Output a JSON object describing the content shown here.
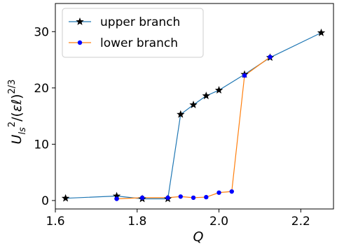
{
  "chart_data": {
    "type": "line",
    "xlabel": "Q",
    "ylabel": "U_ls^2/(εℓ)^(2/3)",
    "xlim": [
      1.6,
      2.28
    ],
    "ylim": [
      -1.5,
      35
    ],
    "xticks": [
      1.6,
      1.8,
      2.0,
      2.2
    ],
    "xtick_labels": [
      "1.6",
      "1.8",
      "2.0",
      "2.2"
    ],
    "yticks": [
      0,
      10,
      20,
      30
    ],
    "ytick_labels": [
      "0",
      "10",
      "20",
      "30"
    ],
    "grid": false,
    "legend_position": "top-left",
    "series": [
      {
        "name": "upper branch",
        "color": "#1f77b4",
        "marker": "star",
        "x": [
          1.625,
          1.75,
          1.8125,
          1.875,
          1.90625,
          1.9375,
          1.96875,
          2.0,
          2.0625,
          2.125,
          2.25
        ],
        "y": [
          0.4,
          0.8,
          0.3,
          0.3,
          15.3,
          17.0,
          18.6,
          19.6,
          22.4,
          25.4,
          29.8
        ]
      },
      {
        "name": "lower branch",
        "color": "#ff7f0e",
        "marker": "circle",
        "marker_color": "#0000ff",
        "x": [
          1.75,
          1.8125,
          1.875,
          1.90625,
          1.9375,
          1.96875,
          2.0,
          2.03125,
          2.0625,
          2.125
        ],
        "y": [
          0.3,
          0.5,
          0.5,
          0.7,
          0.5,
          0.6,
          1.4,
          1.6,
          22.2,
          25.5
        ]
      }
    ]
  }
}
